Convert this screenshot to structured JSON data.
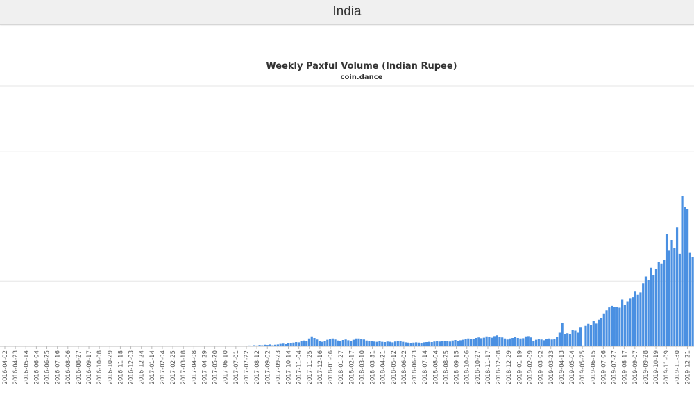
{
  "page": {
    "title": "India"
  },
  "colors": {
    "bar": "#4a90e2",
    "grid": "#e6e6e6",
    "axis": "#bbbbbb",
    "header_bg": "#f0f0f0"
  },
  "chart_data": {
    "type": "bar",
    "title": "Weekly Paxful Volume (Indian Rupee)",
    "subtitle": "coin.dance",
    "xlabel": "",
    "ylabel": "",
    "ylim": [
      0,
      100
    ],
    "grid": true,
    "legend": "none",
    "x_tick_labels": [
      "2016-04-02",
      "2016-04-23",
      "2016-05-14",
      "2016-06-04",
      "2016-06-25",
      "2016-07-16",
      "2016-08-06",
      "2016-08-27",
      "2016-09-17",
      "2016-10-08",
      "2016-10-29",
      "2016-11-18",
      "2016-12-03",
      "2016-12-24",
      "2017-01-14",
      "2017-02-04",
      "2017-02-25",
      "2017-03-18",
      "2017-04-08",
      "2017-04-29",
      "2017-05-20",
      "2017-06-10",
      "2017-07-01",
      "2017-07-22",
      "2017-08-12",
      "2017-09-02",
      "2017-09-23",
      "2017-10-14",
      "2017-11-04",
      "2017-11-25",
      "2017-12-16",
      "2018-01-06",
      "2018-01-27",
      "2018-02-17",
      "2018-03-10",
      "2018-03-31",
      "2018-04-21",
      "2018-05-12",
      "2018-06-02",
      "2018-06-23",
      "2018-07-14",
      "2018-08-04",
      "2018-08-25",
      "2018-09-15",
      "2018-10-06",
      "2018-10-27",
      "2018-11-17",
      "2018-12-08",
      "2018-12-29",
      "2019-01-19",
      "2019-02-09",
      "2019-03-02",
      "2019-03-23",
      "2019-04-13",
      "2019-05-04",
      "2019-05-25",
      "2019-06-15",
      "2019-07-06",
      "2019-07-27",
      "2019-08-17",
      "2019-09-07",
      "2019-09-28",
      "2019-10-19",
      "2019-11-09",
      "2019-11-30",
      "2019-12-21"
    ],
    "values": [
      0,
      0,
      0,
      0,
      0,
      0,
      0,
      0,
      0,
      0,
      0,
      0,
      0,
      0,
      0,
      0,
      0,
      0,
      0,
      0,
      0,
      0,
      0,
      0,
      0,
      0,
      0,
      0,
      0,
      0,
      0,
      0,
      0,
      0,
      0,
      0,
      0,
      0,
      0,
      0,
      0,
      0,
      0,
      0,
      0,
      0,
      0,
      0,
      0,
      0,
      0,
      0,
      0,
      0,
      0,
      0,
      0,
      0,
      0,
      0,
      0,
      0,
      0,
      0,
      0,
      0,
      0,
      0,
      0,
      0,
      0,
      0,
      0,
      0,
      0,
      0,
      0,
      0,
      0,
      0,
      0,
      0,
      0,
      0,
      0,
      0,
      0,
      0,
      0,
      0,
      0,
      0,
      0,
      0,
      0.2,
      0.3,
      0.2,
      0.4,
      0.3,
      0.5,
      0.4,
      0.6,
      0.5,
      0.7,
      0.4,
      0.6,
      0.7,
      0.9,
      1.0,
      0.8,
      1.2,
      1.1,
      1.4,
      1.6,
      1.5,
      1.9,
      2.2,
      2.0,
      3.0,
      3.8,
      3.2,
      2.6,
      2.1,
      1.7,
      2.0,
      2.5,
      2.8,
      3.0,
      2.6,
      2.2,
      2.0,
      2.4,
      2.6,
      2.3,
      2.0,
      2.5,
      3.0,
      3.0,
      2.8,
      2.6,
      2.2,
      2.0,
      1.9,
      1.8,
      1.7,
      1.9,
      1.7,
      1.6,
      1.8,
      1.7,
      1.5,
      1.8,
      2.0,
      1.9,
      1.7,
      1.5,
      1.4,
      1.3,
      1.4,
      1.5,
      1.4,
      1.3,
      1.5,
      1.6,
      1.7,
      1.6,
      1.8,
      1.9,
      1.8,
      2.0,
      1.9,
      2.0,
      1.8,
      2.2,
      2.4,
      2.0,
      2.3,
      2.5,
      2.8,
      3.0,
      2.9,
      2.8,
      3.2,
      3.4,
      3.1,
      3.3,
      3.8,
      3.5,
      3.3,
      3.9,
      4.2,
      3.7,
      3.4,
      3.0,
      2.6,
      3.0,
      3.2,
      3.6,
      3.2,
      3.0,
      3.1,
      3.8,
      3.9,
      3.4,
      2.0,
      2.5,
      2.8,
      2.6,
      2.3,
      2.7,
      3.0,
      2.6,
      2.9,
      3.6,
      5.2,
      9.0,
      4.6,
      5.0,
      4.8,
      6.4,
      6.0,
      5.2,
      7.4,
      0.3,
      7.8,
      8.6,
      8.0,
      9.8,
      8.7,
      10.2,
      10.8,
      12.6,
      13.8,
      14.9,
      15.5,
      15.2,
      15.1,
      14.8,
      18.0,
      16.0,
      17.2,
      18.3,
      18.9,
      21.0,
      19.8,
      20.7,
      24.2,
      26.8,
      25.5,
      30.2,
      27.4,
      29.6,
      32.4,
      31.8,
      33.3,
      43.2,
      36.7,
      40.8,
      37.7,
      45.8,
      35.5,
      57.6,
      53.4,
      52.8,
      36.1,
      34.4
    ]
  }
}
